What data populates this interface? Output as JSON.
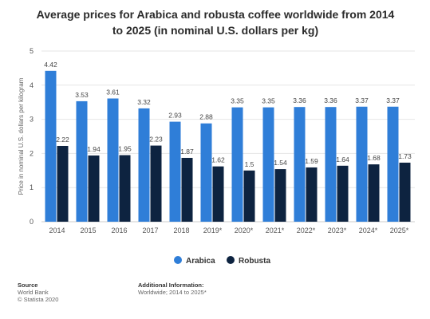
{
  "chart_data": {
    "type": "bar",
    "title": "Average prices for Arabica and robusta coffee worldwide from 2014 to 2025 (in nominal U.S. dollars per kg)",
    "ylabel": "Price in nominal U.S. dollars per kilogram",
    "xlabel": "",
    "ylim": [
      0,
      5
    ],
    "yticks": [
      0,
      1,
      2,
      3,
      4,
      5
    ],
    "grid": true,
    "legend": "bottom",
    "categories": [
      "2014",
      "2015",
      "2016",
      "2017",
      "2018",
      "2019*",
      "2020*",
      "2021*",
      "2022*",
      "2023*",
      "2024*",
      "2025*"
    ],
    "series": [
      {
        "name": "Arabica",
        "color": "#2f7ed8",
        "values": [
          4.42,
          3.53,
          3.61,
          3.32,
          2.93,
          2.88,
          3.35,
          3.35,
          3.36,
          3.36,
          3.37,
          3.37
        ],
        "labels": [
          "4.42",
          "3.53",
          "3.61",
          "3.32",
          "2.93",
          "2.88",
          "3.35",
          "3.35",
          "3.36",
          "3.36",
          "3.37",
          "3.37"
        ]
      },
      {
        "name": "Robusta",
        "color": "#0d2340",
        "values": [
          2.22,
          1.94,
          1.95,
          2.23,
          1.87,
          1.62,
          1.5,
          1.54,
          1.59,
          1.64,
          1.68,
          1.73
        ],
        "labels": [
          "2.22",
          "1.94",
          "1.95",
          "2.23",
          "1.87",
          "1.62",
          "1.5",
          "1.54",
          "1.59",
          "1.64",
          "1.68",
          "1.73"
        ]
      }
    ]
  },
  "footer": {
    "source_heading": "Source",
    "source_line1": "World Bank",
    "source_line2": "© Statista 2020",
    "info_heading": "Additional Information:",
    "info_line1": "Worldwide; 2014 to 2025*"
  }
}
